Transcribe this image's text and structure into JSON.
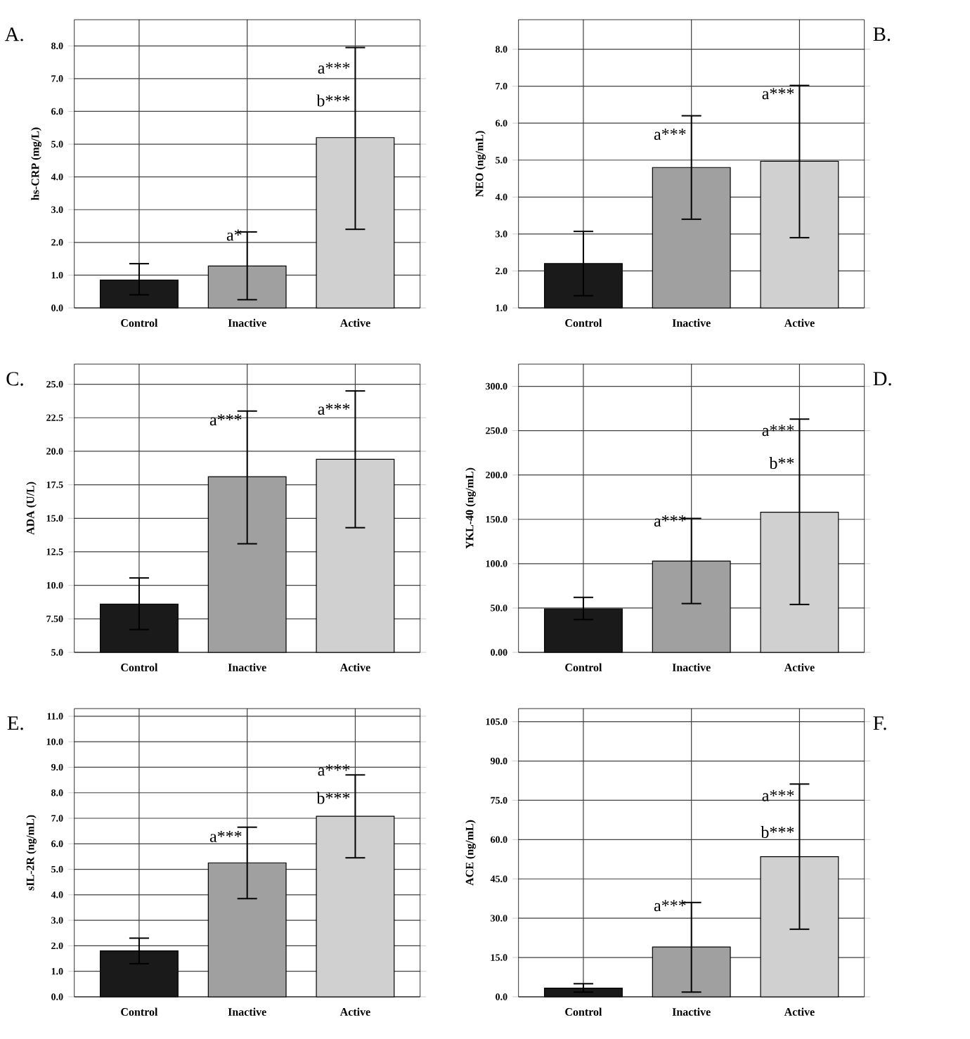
{
  "chart_data": [
    {
      "type": "bar",
      "title": "A.",
      "ylabel": "hs-CRP (mg/L)",
      "categories": [
        "Control",
        "Inactive",
        "Active"
      ],
      "values": [
        0.85,
        1.28,
        5.2
      ],
      "colors": [
        "#1a1a1a",
        "#a0a0a0",
        "#d0d0d0"
      ],
      "errors": [
        [
          0.4,
          1.35
        ],
        [
          0.25,
          2.32
        ],
        [
          2.4,
          7.95
        ]
      ],
      "ylim": [
        0,
        8.8
      ],
      "yticks": [
        {
          "value": 0,
          "label": "0.0"
        },
        {
          "value": 1,
          "label": "1.0"
        },
        {
          "value": 2,
          "label": "2.0"
        },
        {
          "value": 3,
          "label": "3.0"
        },
        {
          "value": 4,
          "label": "4.0"
        },
        {
          "value": 5,
          "label": "5.0"
        },
        {
          "value": 6,
          "label": "6.0"
        },
        {
          "value": 7,
          "label": "7.0"
        },
        {
          "value": 8,
          "label": "8.0"
        }
      ],
      "grid": true,
      "annotations": [
        {
          "text": "a*",
          "x": "Inactive",
          "y": 2.0
        },
        {
          "text": "a***",
          "x": "Active",
          "y": 7.1
        },
        {
          "text": "b***",
          "x": "Active",
          "y": 6.1
        }
      ]
    },
    {
      "type": "bar",
      "title": "B.",
      "ylabel": "NEO (ng/mL)",
      "categories": [
        "Control",
        "Inactive",
        "Active"
      ],
      "values": [
        2.2,
        4.8,
        4.97
      ],
      "colors": [
        "#1a1a1a",
        "#a0a0a0",
        "#d0d0d0"
      ],
      "errors": [
        [
          1.33,
          3.07
        ],
        [
          3.4,
          6.2
        ],
        [
          2.9,
          7.02
        ]
      ],
      "ylim": [
        1,
        8.8
      ],
      "yticks": [
        {
          "value": 1,
          "label": "1.0"
        },
        {
          "value": 2,
          "label": "2.0"
        },
        {
          "value": 3,
          "label": "3.0"
        },
        {
          "value": 4,
          "label": "4.0"
        },
        {
          "value": 5,
          "label": "5.0"
        },
        {
          "value": 6,
          "label": "6.0"
        },
        {
          "value": 7,
          "label": "7.0"
        },
        {
          "value": 8,
          "label": "8.0"
        }
      ],
      "grid": true,
      "annotations": [
        {
          "text": "a***",
          "x": "Inactive",
          "y": 5.5
        },
        {
          "text": "a***",
          "x": "Active",
          "y": 6.6
        }
      ]
    },
    {
      "type": "bar",
      "title": "C.",
      "ylabel": "ADA (U/L)",
      "categories": [
        "Control",
        "Inactive",
        "Active"
      ],
      "values": [
        8.6,
        18.1,
        19.4
      ],
      "colors": [
        "#1a1a1a",
        "#a0a0a0",
        "#d0d0d0"
      ],
      "errors": [
        [
          6.7,
          10.55
        ],
        [
          13.1,
          23.0
        ],
        [
          14.3,
          24.5
        ]
      ],
      "ylim": [
        5,
        26.5
      ],
      "yticks": [
        {
          "value": 5,
          "label": "5.0"
        },
        {
          "value": 7.5,
          "label": "7.50"
        },
        {
          "value": 10,
          "label": "10.0"
        },
        {
          "value": 12.5,
          "label": "12.5"
        },
        {
          "value": 15,
          "label": "15.0"
        },
        {
          "value": 17.5,
          "label": "17.5"
        },
        {
          "value": 20,
          "label": "20.0"
        },
        {
          "value": 22.5,
          "label": "22.5"
        },
        {
          "value": 25,
          "label": "25.0"
        }
      ],
      "grid": true,
      "annotations": [
        {
          "text": "a***",
          "x": "Inactive",
          "y": 21.8
        },
        {
          "text": "a***",
          "x": "Active",
          "y": 22.6
        }
      ]
    },
    {
      "type": "bar",
      "title": "D.",
      "ylabel": "YKL-40 (ng/mL)",
      "categories": [
        "Control",
        "Inactive",
        "Active"
      ],
      "values": [
        49,
        103,
        158
      ],
      "colors": [
        "#1a1a1a",
        "#a0a0a0",
        "#d0d0d0"
      ],
      "errors": [
        [
          37,
          62
        ],
        [
          55,
          151
        ],
        [
          54,
          263
        ]
      ],
      "ylim": [
        0,
        325
      ],
      "yticks": [
        {
          "value": 0,
          "label": "0.00"
        },
        {
          "value": 50,
          "label": "50.0"
        },
        {
          "value": 100,
          "label": "100.0"
        },
        {
          "value": 150,
          "label": "150.0"
        },
        {
          "value": 200,
          "label": "200.0"
        },
        {
          "value": 250,
          "label": "250.0"
        },
        {
          "value": 300,
          "label": "300.0"
        }
      ],
      "grid": true,
      "annotations": [
        {
          "text": "a***",
          "x": "Inactive",
          "y": 140
        },
        {
          "text": "a***",
          "x": "Active",
          "y": 242
        },
        {
          "text": "b**",
          "x": "Active",
          "y": 205
        }
      ]
    },
    {
      "type": "bar",
      "title": "E.",
      "ylabel": "sIL-2R (ng/mL)",
      "categories": [
        "Control",
        "Inactive",
        "Active"
      ],
      "values": [
        1.8,
        5.25,
        7.08
      ],
      "colors": [
        "#1a1a1a",
        "#a0a0a0",
        "#d0d0d0"
      ],
      "errors": [
        [
          1.3,
          2.3
        ],
        [
          3.85,
          6.65
        ],
        [
          5.45,
          8.7
        ]
      ],
      "ylim": [
        0,
        11.3
      ],
      "yticks": [
        {
          "value": 0,
          "label": "0.0"
        },
        {
          "value": 1,
          "label": "1.0"
        },
        {
          "value": 2,
          "label": "2.0"
        },
        {
          "value": 3,
          "label": "3.0"
        },
        {
          "value": 4,
          "label": "4.0"
        },
        {
          "value": 5,
          "label": "5.0"
        },
        {
          "value": 6,
          "label": "6.0"
        },
        {
          "value": 7,
          "label": "7.0"
        },
        {
          "value": 8,
          "label": "8.0"
        },
        {
          "value": 9,
          "label": "9.0"
        },
        {
          "value": 10,
          "label": "10.0"
        },
        {
          "value": 11,
          "label": "11.0"
        }
      ],
      "grid": true,
      "annotations": [
        {
          "text": "a***",
          "x": "Inactive",
          "y": 6.0
        },
        {
          "text": "a***",
          "x": "Active",
          "y": 8.6
        },
        {
          "text": "b***",
          "x": "Active",
          "y": 7.5
        }
      ]
    },
    {
      "type": "bar",
      "title": "F.",
      "ylabel": "ACE (ng/mL)",
      "categories": [
        "Control",
        "Inactive",
        "Active"
      ],
      "values": [
        3.3,
        19,
        53.5
      ],
      "colors": [
        "#1a1a1a",
        "#a0a0a0",
        "#d0d0d0"
      ],
      "errors": [
        [
          1.8,
          5.0
        ],
        [
          1.8,
          36
        ],
        [
          25.8,
          81.2
        ]
      ],
      "ylim": [
        0,
        110
      ],
      "yticks": [
        {
          "value": 0,
          "label": "0.0"
        },
        {
          "value": 15,
          "label": "15.0"
        },
        {
          "value": 30,
          "label": "30.0"
        },
        {
          "value": 45,
          "label": "45.0"
        },
        {
          "value": 60,
          "label": "60.0"
        },
        {
          "value": 75,
          "label": "75.0"
        },
        {
          "value": 90,
          "label": "90.0"
        },
        {
          "value": 105,
          "label": "105.0"
        }
      ],
      "grid": true,
      "annotations": [
        {
          "text": "a***",
          "x": "Inactive",
          "y": 32
        },
        {
          "text": "a***",
          "x": "Active",
          "y": 74
        },
        {
          "text": "b***",
          "x": "Active",
          "y": 60
        }
      ]
    }
  ]
}
